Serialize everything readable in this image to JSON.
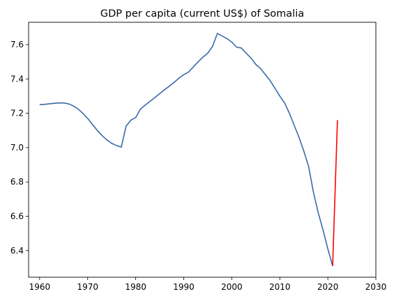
{
  "chart_data": {
    "type": "line",
    "title": "GDP per capita (current US$) of Somalia",
    "xlabel": "",
    "ylabel": "",
    "xlim": [
      1957.7,
      2030
    ],
    "ylim": [
      6.245,
      7.73
    ],
    "xticks": [
      1960,
      1970,
      1980,
      1990,
      2000,
      2010,
      2020,
      2030
    ],
    "yticks": [
      6.4,
      6.6,
      6.8,
      7.0,
      7.2,
      7.4,
      7.6
    ],
    "tick_labels_x": [
      "1960",
      "1970",
      "1980",
      "1990",
      "2000",
      "2010",
      "2020",
      "2030"
    ],
    "tick_labels_y": [
      "6.4",
      "6.6",
      "6.8",
      "7.0",
      "7.2",
      "7.4",
      "7.6"
    ],
    "grid": false,
    "series": [
      {
        "color": "#3a6aa8",
        "x": [
          1960,
          1961,
          1962,
          1963,
          1964,
          1965,
          1966,
          1967,
          1968,
          1969,
          1970,
          1971,
          1972,
          1973,
          1974,
          1975,
          1976,
          1977,
          1978,
          1979,
          1980,
          1981,
          1982,
          1983,
          1984,
          1985,
          1986,
          1987,
          1988,
          1989,
          1990,
          1991,
          1992,
          1993,
          1994,
          1995,
          1996,
          1997,
          1998,
          1999,
          2000,
          2001,
          2002,
          2003,
          2004,
          2005,
          2006,
          2007,
          2008,
          2009,
          2010,
          2011,
          2012,
          2013,
          2014,
          2015,
          2016,
          2017,
          2018,
          2019,
          2020,
          2021
        ],
        "y": [
          7.25,
          7.252,
          7.255,
          7.258,
          7.26,
          7.26,
          7.255,
          7.243,
          7.225,
          7.2,
          7.17,
          7.135,
          7.1,
          7.07,
          7.045,
          7.025,
          7.012,
          7.003,
          7.125,
          7.16,
          7.175,
          7.225,
          7.248,
          7.27,
          7.292,
          7.315,
          7.337,
          7.358,
          7.38,
          7.405,
          7.425,
          7.44,
          7.47,
          7.5,
          7.527,
          7.55,
          7.59,
          7.665,
          7.65,
          7.635,
          7.615,
          7.585,
          7.58,
          7.55,
          7.522,
          7.485,
          7.46,
          7.425,
          7.39,
          7.345,
          7.3,
          7.26,
          7.2,
          7.13,
          7.06,
          6.98,
          6.89,
          6.74,
          6.62,
          6.52,
          6.41,
          6.31
        ]
      },
      {
        "color": "#ff0000",
        "x": [
          2021,
          2022
        ],
        "y": [
          6.31,
          7.16
        ]
      }
    ]
  }
}
